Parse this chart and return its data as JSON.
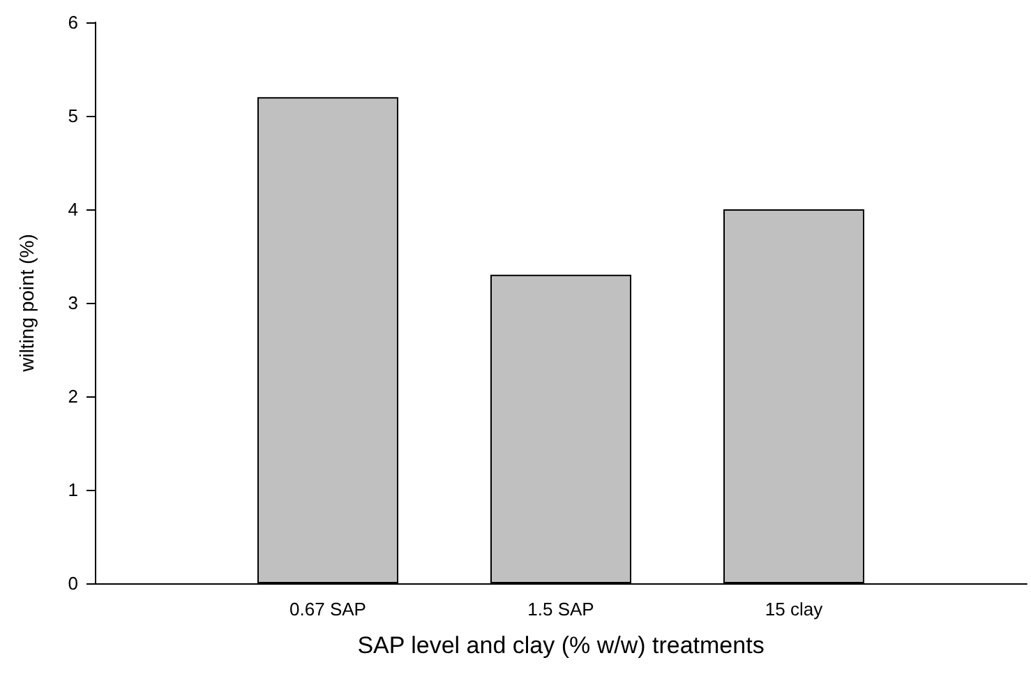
{
  "chart_data": {
    "type": "bar",
    "xlabel": "SAP level and clay (% w/w) treatments",
    "ylabel": "wilting point (%)",
    "categories": [
      null,
      "0.67 SAP",
      "1.5 SAP",
      "15 clay",
      null
    ],
    "series": [
      {
        "color": "#c0c0c0",
        "values": [
          null,
          5.2,
          3.3,
          4.0,
          null
        ]
      }
    ],
    "ylim": [
      0,
      6
    ],
    "yticks": [
      0,
      1,
      2,
      3,
      4,
      5,
      6
    ],
    "grid": false
  }
}
